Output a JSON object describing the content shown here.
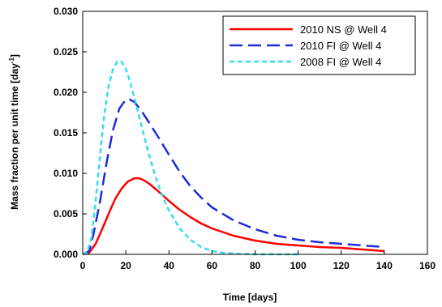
{
  "chart_data": {
    "type": "line",
    "title": "",
    "xlabel": "Time [days]",
    "ylabel": "Mass fraction per unit time [day",
    "ylabel_sup": "-1",
    "ylabel_close": "]",
    "xlim": [
      0,
      160
    ],
    "ylim": [
      0,
      0.03
    ],
    "xticks": [
      0,
      20,
      40,
      60,
      80,
      100,
      120,
      140,
      160
    ],
    "xtick_labels": [
      "0",
      "20",
      "40",
      "60",
      "80",
      "100",
      "120",
      "140",
      "160"
    ],
    "yticks": [
      0,
      0.005,
      0.01,
      0.015,
      0.02,
      0.025,
      0.03
    ],
    "ytick_labels": [
      "0.000",
      "0.005",
      "0.010",
      "0.015",
      "0.020",
      "0.025",
      "0.030"
    ],
    "grid": false,
    "legend": "top-right",
    "series": [
      {
        "name": "2010 NS @ Well 4",
        "color": "#ff0000",
        "dash": "solid",
        "x": [
          0,
          3,
          6,
          9,
          12,
          15,
          18,
          21,
          24,
          26,
          28,
          31,
          35,
          40,
          45,
          50,
          55,
          60,
          70,
          80,
          90,
          100,
          110,
          120,
          130,
          140
        ],
        "y": [
          0,
          0.0002,
          0.0013,
          0.0031,
          0.005,
          0.0068,
          0.0081,
          0.009,
          0.0094,
          0.0094,
          0.0092,
          0.0087,
          0.0078,
          0.0066,
          0.0055,
          0.0046,
          0.0038,
          0.0032,
          0.0023,
          0.0017,
          0.0013,
          0.0011,
          0.0009,
          0.0008,
          0.0006,
          0.0004
        ]
      },
      {
        "name": "2010 FI @ Well 4",
        "color": "#1f2bd6",
        "dash": "long",
        "x": [
          0,
          3,
          5,
          8,
          11,
          14,
          17,
          20,
          22,
          24,
          27,
          30,
          35,
          40,
          45,
          50,
          55,
          60,
          70,
          80,
          90,
          100,
          110,
          120,
          130,
          140
        ],
        "y": [
          0,
          0.0004,
          0.0025,
          0.0065,
          0.0112,
          0.0153,
          0.018,
          0.0191,
          0.0191,
          0.0188,
          0.0178,
          0.0166,
          0.0145,
          0.0123,
          0.0102,
          0.0084,
          0.007,
          0.0058,
          0.0042,
          0.0031,
          0.0023,
          0.0018,
          0.0015,
          0.0013,
          0.0011,
          0.0009
        ]
      },
      {
        "name": "2008 FI @ Well 4",
        "color": "#33ddee",
        "dash": "short",
        "x": [
          0,
          2,
          4,
          6,
          8,
          10,
          12,
          14,
          16,
          18,
          20,
          22,
          25,
          28,
          31,
          34,
          37,
          40,
          45,
          50,
          55,
          60,
          65,
          70,
          80,
          90,
          100
        ],
        "y": [
          0,
          0.0002,
          0.002,
          0.0065,
          0.0122,
          0.0172,
          0.0208,
          0.0228,
          0.0238,
          0.0238,
          0.0229,
          0.0213,
          0.0183,
          0.0151,
          0.0121,
          0.0094,
          0.0072,
          0.0054,
          0.0032,
          0.0018,
          0.0009,
          0.0004,
          0.0002,
          0.0001,
          0,
          0,
          0
        ]
      }
    ]
  }
}
